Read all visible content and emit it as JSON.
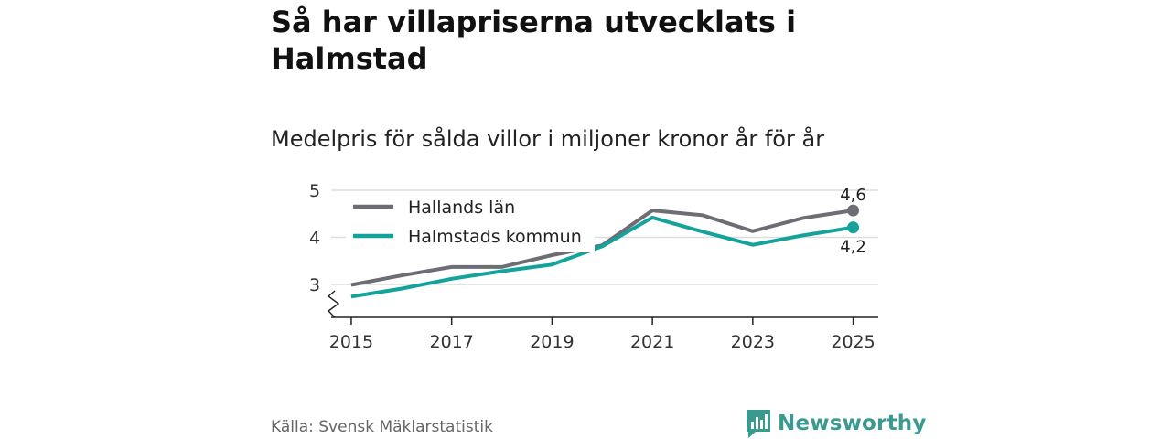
{
  "title": "Så har villapriserna utvecklats i Halmstad",
  "subtitle": "Medelpris för sålda villor i miljoner kronor år för år",
  "source": "Källa: Svensk Mäklarstatistik",
  "brand": "Newsworthy",
  "colors": {
    "hallands": "#6e6c75",
    "halmstad": "#13a39a",
    "brand": "#3a9a8f",
    "grid": "#dddddd"
  },
  "chart_data": {
    "type": "line",
    "x": [
      2015,
      2016,
      2017,
      2018,
      2019,
      2020,
      2021,
      2022,
      2023,
      2024,
      2025
    ],
    "x_tick_labels": [
      "2015",
      "2017",
      "2019",
      "2021",
      "2023",
      "2025"
    ],
    "y_tick_labels": [
      "3",
      "4",
      "5"
    ],
    "ylim": [
      2.3,
      5
    ],
    "xlim": [
      2014.6,
      2025.5
    ],
    "axis_break": true,
    "series": [
      {
        "name": "Hallands län",
        "values": [
          2.99,
          3.19,
          3.37,
          3.37,
          3.62,
          3.83,
          4.57,
          4.47,
          4.13,
          4.41,
          4.57
        ],
        "end_label": "4,6"
      },
      {
        "name": "Halmstads kommun",
        "values": [
          2.74,
          2.91,
          3.12,
          3.28,
          3.42,
          3.81,
          4.42,
          4.12,
          3.84,
          4.04,
          4.21
        ],
        "end_label": "4,2"
      }
    ],
    "legend": "top-left"
  }
}
